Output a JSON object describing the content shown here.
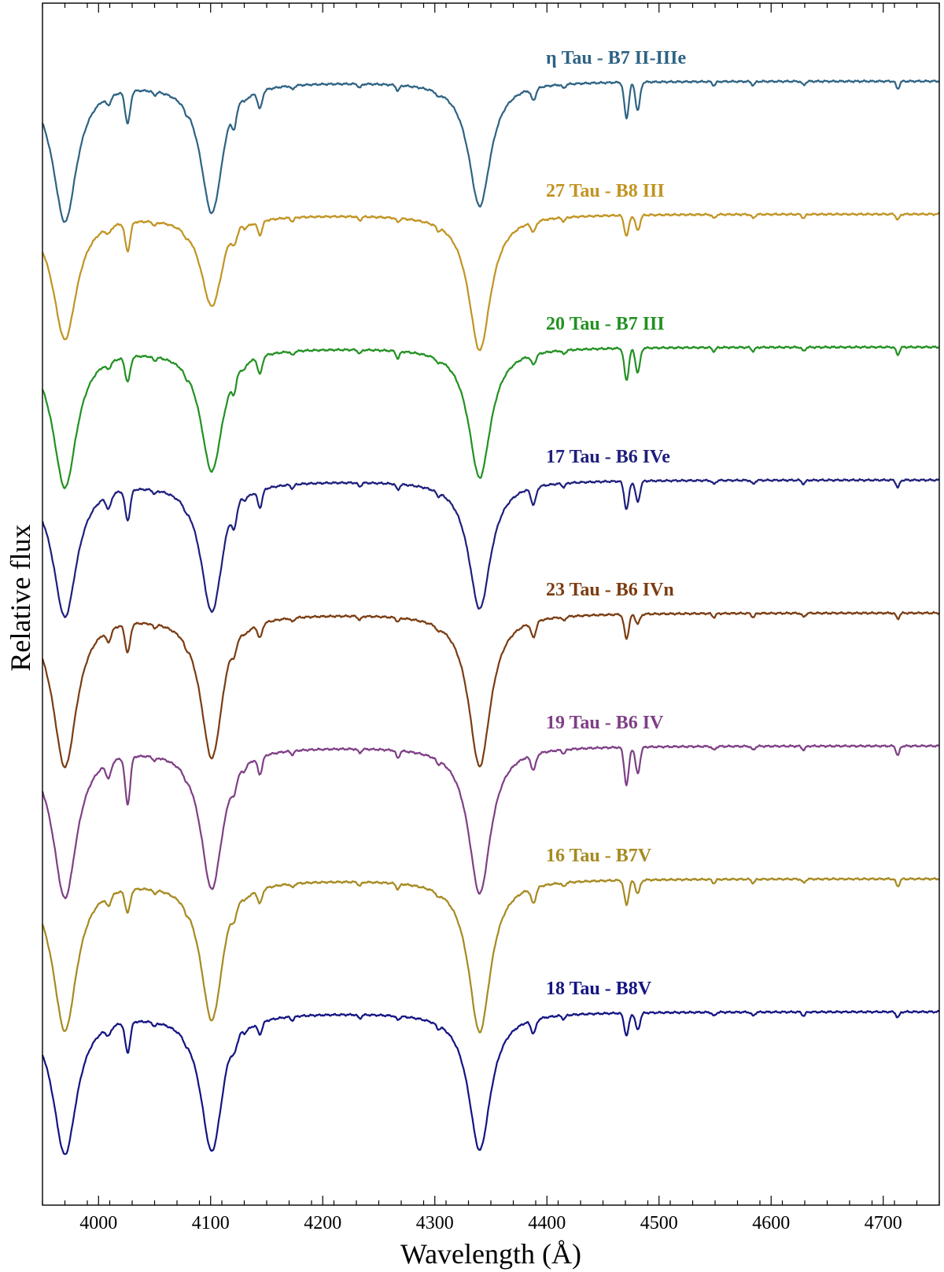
{
  "chart_data": {
    "type": "line",
    "title": "",
    "xlabel": "Wavelength (Å)",
    "ylabel": "Relative flux",
    "xlim": [
      3950,
      4750
    ],
    "x_ticks": [
      4000,
      4100,
      4200,
      4300,
      4400,
      4500,
      4600,
      4700
    ],
    "y_ticks_shown": false,
    "grid": false,
    "legend": "inline labels above each spectrum",
    "continuum": 1.0,
    "absorption_lines": [
      {
        "x": 3970,
        "depth_H": 1,
        "width": 5
      },
      {
        "x": 4009,
        "width": 2.2
      },
      {
        "x": 4026,
        "width": 2.2
      },
      {
        "x": 4101,
        "depth_H": 1,
        "width": 5
      },
      {
        "x": 4121,
        "width": 1.8
      },
      {
        "x": 4144,
        "width": 2
      },
      {
        "x": 4267,
        "width": 1.5
      },
      {
        "x": 4340,
        "depth_H": 1,
        "width": 5
      },
      {
        "x": 4388,
        "width": 2.2
      },
      {
        "x": 4471,
        "width": 2
      },
      {
        "x": 4481,
        "width": 2
      },
      {
        "x": 4713,
        "width": 1.5
      }
    ],
    "series": [
      {
        "name": "η Tau - B7 II-IIIe",
        "color": "#2e6384",
        "offset": 7,
        "h_depths": [
          0.74,
          0.69,
          0.66
        ],
        "metal_depths": [
          0.04,
          0.17,
          0.07,
          0.09,
          0.03,
          0.06,
          0.19,
          0.15,
          0.04
        ],
        "emission": true
      },
      {
        "name": "27 Tau - B8 III",
        "color": "#c19422",
        "offset": 6,
        "h_depths": [
          0.66,
          0.48,
          0.72
        ],
        "metal_depths": [
          0.03,
          0.15,
          0.04,
          0.07,
          0.02,
          0.05,
          0.11,
          0.08,
          0.03
        ],
        "emission": true
      },
      {
        "name": "20 Tau - B7 III",
        "color": "#229122",
        "offset": 5,
        "h_depths": [
          0.74,
          0.65,
          0.69
        ],
        "metal_depths": [
          0.03,
          0.13,
          0.07,
          0.09,
          0.04,
          0.05,
          0.17,
          0.13,
          0.04
        ],
        "emission": false
      },
      {
        "name": "17 Tau - B6 IVe",
        "color": "#1f1f7d",
        "offset": 4,
        "h_depths": [
          0.72,
          0.69,
          0.68
        ],
        "metal_depths": [
          0.07,
          0.16,
          0.08,
          0.09,
          0.03,
          0.09,
          0.15,
          0.11,
          0.04
        ],
        "emission": true
      },
      {
        "name": "23 Tau - B6 IVn",
        "color": "#7b3c12",
        "offset": 3,
        "h_depths": [
          0.81,
          0.76,
          0.81
        ],
        "metal_depths": [
          0.06,
          0.15,
          0.03,
          0.07,
          0.02,
          0.08,
          0.13,
          0.05,
          0.03
        ],
        "emission": true
      },
      {
        "name": "19 Tau - B6 IV",
        "color": "#7f3f86",
        "offset": 2,
        "h_depths": [
          0.8,
          0.75,
          0.78
        ],
        "metal_depths": [
          0.08,
          0.25,
          0.06,
          0.09,
          0.04,
          0.08,
          0.2,
          0.14,
          0.05
        ],
        "emission": false
      },
      {
        "name": "16 Tau - B7V",
        "color": "#a68a21",
        "offset": 1,
        "h_depths": [
          0.8,
          0.74,
          0.81
        ],
        "metal_depths": [
          0.05,
          0.12,
          0.03,
          0.07,
          0.03,
          0.08,
          0.13,
          0.07,
          0.04
        ],
        "emission": true
      },
      {
        "name": "18 Tau - B8V",
        "color": "#141484",
        "offset": 0,
        "h_depths": [
          0.75,
          0.73,
          0.73
        ],
        "metal_depths": [
          0.04,
          0.16,
          0.03,
          0.06,
          0.02,
          0.07,
          0.12,
          0.09,
          0.03
        ],
        "emission": true
      }
    ]
  }
}
